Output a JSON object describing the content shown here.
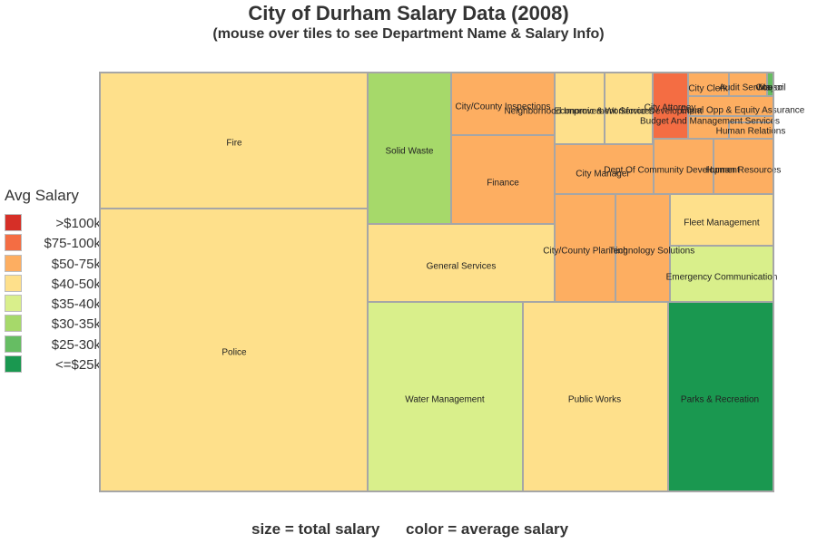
{
  "title": "City of Durham Salary Data (2008)",
  "subtitle": "(mouse over tiles to see Department Name & Salary Info)",
  "legend": {
    "title": "Avg Salary",
    "items": [
      {
        "label": ">$100k",
        "color": "#d62f27"
      },
      {
        "label": "$75-100k",
        "color": "#f46d43"
      },
      {
        "label": "$50-75k",
        "color": "#fdae61"
      },
      {
        "label": "$40-50k",
        "color": "#fee08b"
      },
      {
        "label": "$35-40k",
        "color": "#d9ef8b"
      },
      {
        "label": "$30-35k",
        "color": "#a6d96a"
      },
      {
        "label": "$25-30k",
        "color": "#66bd63"
      },
      {
        "label": "<=$25k",
        "color": "#1a9850"
      }
    ]
  },
  "footer": {
    "size_note": "size = total salary",
    "color_note": "color = average salary"
  },
  "chart_data": {
    "type": "treemap",
    "title": "City of Durham Salary Data (2008)",
    "size_metric": "total salary",
    "color_metric": "average salary",
    "tiles": [
      {
        "name": "Fire",
        "color_bin": "$40-50k"
      },
      {
        "name": "Police",
        "color_bin": "$40-50k"
      },
      {
        "name": "Solid Waste",
        "color_bin": "$30-35k"
      },
      {
        "name": "City/County Inspections",
        "color_bin": "$50-75k"
      },
      {
        "name": "Finance",
        "color_bin": "$50-75k"
      },
      {
        "name": "General Services",
        "color_bin": "$40-50k"
      },
      {
        "name": "Water Management",
        "color_bin": "$35-40k"
      },
      {
        "name": "Public Works",
        "color_bin": "$40-50k"
      },
      {
        "name": "Parks & Recreation",
        "color_bin": "<=$25k"
      },
      {
        "name": "Neighborhood Improvement Services",
        "color_bin": "$40-50k"
      },
      {
        "name": "Economic & Workforce Development",
        "color_bin": "$40-50k"
      },
      {
        "name": "City Attorney",
        "color_bin": "$75-100k"
      },
      {
        "name": "City Clerk",
        "color_bin": "$50-75k"
      },
      {
        "name": "Audit Services",
        "color_bin": "$50-75k"
      },
      {
        "name": "Council",
        "color_bin": "$50-75k"
      },
      {
        "name": "Mayor",
        "color_bin": "$25-30k"
      },
      {
        "name": "Equal Opp & Equity Assurance",
        "color_bin": "$50-75k"
      },
      {
        "name": "Budget And Management Services",
        "color_bin": "$50-75k"
      },
      {
        "name": "Human Relations",
        "color_bin": "$50-75k"
      },
      {
        "name": "City Manager",
        "color_bin": "$50-75k"
      },
      {
        "name": "Dept Of Community Development",
        "color_bin": "$50-75k"
      },
      {
        "name": "Human Resources",
        "color_bin": "$50-75k"
      },
      {
        "name": "City/County Planning",
        "color_bin": "$50-75k"
      },
      {
        "name": "Technology Solutions",
        "color_bin": "$50-75k"
      },
      {
        "name": "Fleet Management",
        "color_bin": "$40-50k"
      },
      {
        "name": "Emergency Communication",
        "color_bin": "$35-40k"
      }
    ]
  }
}
